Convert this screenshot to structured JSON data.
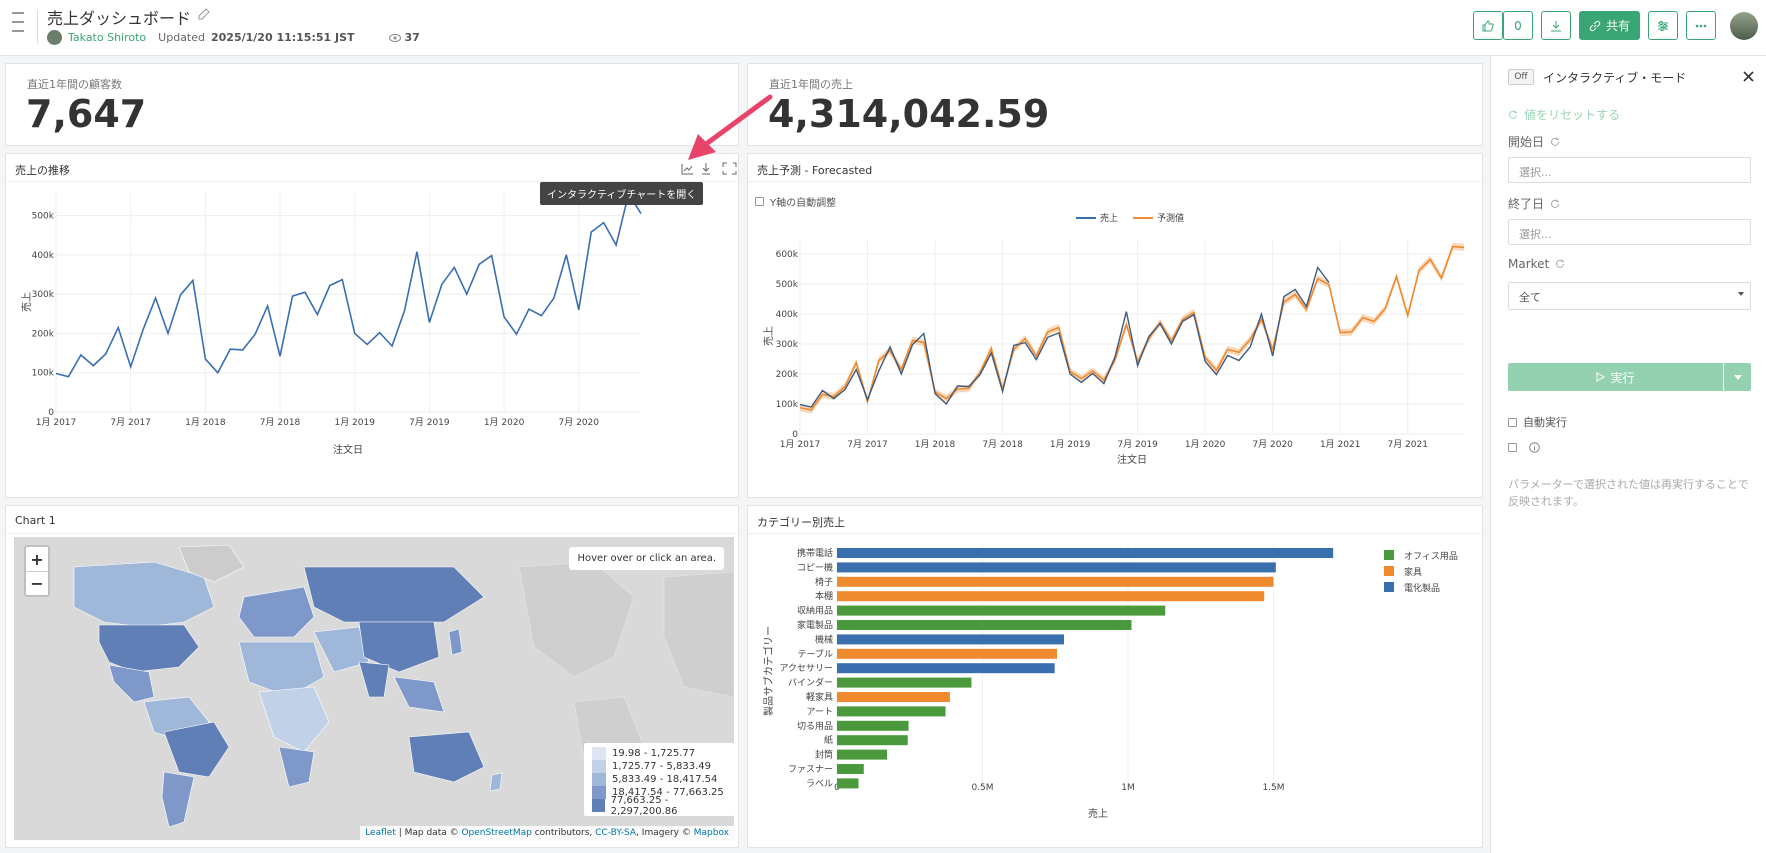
{
  "header": {
    "title": "売上ダッシュボード",
    "author": "Takato Shiroto",
    "updated_label": "Updated",
    "updated_value": "2025/1/20 11:15:51 JST",
    "views": "37",
    "likes": "0",
    "share_label": "共有"
  },
  "kpi": [
    {
      "label": "直近1年間の顧客数",
      "value": "7,647"
    },
    {
      "label": "直近1年間の売上",
      "value": "4,314,042.59"
    }
  ],
  "panels": {
    "trend_title": "売上の推移",
    "trend_tooltip": "インタラクティブチャートを開く",
    "forecast_title": "売上予測 - Forecasted",
    "forecast_checkbox": "Y軸の自動調整",
    "map_title": "Chart 1",
    "category_title": "カテゴリー別売上"
  },
  "chart_data": [
    {
      "type": "line",
      "xlabel": "注文日",
      "ylabel": "売上",
      "ylim": [
        0,
        560000
      ],
      "yticks": [
        "0",
        "100k",
        "200k",
        "300k",
        "400k",
        "500k"
      ],
      "xticks": [
        "1月 2017",
        "7月 2017",
        "1月 2018",
        "7月 2018",
        "1月 2019",
        "7月 2019",
        "1月 2020",
        "7月 2020"
      ],
      "x": [
        "2017-01",
        "2017-02",
        "2017-03",
        "2017-04",
        "2017-05",
        "2017-06",
        "2017-07",
        "2017-08",
        "2017-09",
        "2017-10",
        "2017-11",
        "2017-12",
        "2018-01",
        "2018-02",
        "2018-03",
        "2018-04",
        "2018-05",
        "2018-06",
        "2018-07",
        "2018-08",
        "2018-09",
        "2018-10",
        "2018-11",
        "2018-12",
        "2019-01",
        "2019-02",
        "2019-03",
        "2019-04",
        "2019-05",
        "2019-06",
        "2019-07",
        "2019-08",
        "2019-09",
        "2019-10",
        "2019-11",
        "2019-12",
        "2020-01",
        "2020-02",
        "2020-03",
        "2020-04",
        "2020-05",
        "2020-06",
        "2020-07",
        "2020-08",
        "2020-09",
        "2020-10",
        "2020-11",
        "2020-12"
      ],
      "values": [
        98000,
        90000,
        145000,
        118000,
        148000,
        215000,
        115000,
        210000,
        290000,
        200000,
        298000,
        335000,
        135000,
        100000,
        160000,
        158000,
        198000,
        270000,
        142000,
        295000,
        305000,
        248000,
        322000,
        337000,
        200000,
        172000,
        202000,
        168000,
        258000,
        408000,
        228000,
        325000,
        368000,
        300000,
        376000,
        398000,
        242000,
        198000,
        262000,
        245000,
        290000,
        400000,
        260000,
        458000,
        482000,
        425000,
        555000,
        505000
      ]
    },
    {
      "type": "line",
      "xlabel": "注文日",
      "ylabel": "売上",
      "ylim": [
        0,
        650000
      ],
      "yticks": [
        "0",
        "100k",
        "200k",
        "300k",
        "400k",
        "500k",
        "600k"
      ],
      "xticks": [
        "1月 2017",
        "7月 2017",
        "1月 2018",
        "7月 2018",
        "1月 2019",
        "7月 2019",
        "1月 2020",
        "7月 2020",
        "1月 2021",
        "7月 2021"
      ],
      "legend": [
        "売上",
        "予測値"
      ],
      "actual": [
        98000,
        90000,
        145000,
        118000,
        148000,
        215000,
        115000,
        210000,
        290000,
        200000,
        298000,
        335000,
        135000,
        100000,
        160000,
        158000,
        198000,
        270000,
        142000,
        295000,
        305000,
        248000,
        322000,
        337000,
        200000,
        172000,
        202000,
        168000,
        258000,
        408000,
        228000,
        325000,
        368000,
        300000,
        376000,
        398000,
        242000,
        198000,
        262000,
        245000,
        290000,
        400000,
        260000,
        458000,
        482000,
        425000,
        555000,
        505000
      ],
      "forecast": [
        88000,
        80000,
        132000,
        125000,
        158000,
        238000,
        108000,
        245000,
        278000,
        215000,
        312000,
        305000,
        140000,
        118000,
        150000,
        152000,
        205000,
        285000,
        150000,
        282000,
        318000,
        260000,
        340000,
        355000,
        208000,
        185000,
        210000,
        180000,
        248000,
        365000,
        240000,
        318000,
        372000,
        310000,
        382000,
        405000,
        255000,
        212000,
        282000,
        272000,
        315000,
        382000,
        282000,
        440000,
        465000,
        415000,
        518000,
        498000,
        338000,
        340000,
        388000,
        375000,
        418000,
        525000,
        395000,
        545000,
        582000,
        520000,
        625000,
        622000
      ]
    },
    {
      "type": "bar",
      "orientation": "horizontal",
      "ylabel": "製品サブカテゴリー",
      "xlabel": "売上",
      "xticks": [
        "0",
        "0.5M",
        "1M",
        "1.5M"
      ],
      "xlim": [
        0,
        1900000
      ],
      "legend": [
        {
          "name": "オフィス用品",
          "color": "#4a9a3d"
        },
        {
          "name": "家具",
          "color": "#f08a2e"
        },
        {
          "name": "電化製品",
          "color": "#3a6faf"
        }
      ],
      "categories": [
        "携帯電話",
        "コピー機",
        "椅子",
        "本棚",
        "収納用品",
        "家電製品",
        "機械",
        "テーブル",
        "アクセサリー",
        "バインダー",
        "軽家具",
        "アート",
        "切る用品",
        "紙",
        "封筒",
        "ファスナー",
        "ラベル"
      ],
      "values": [
        1705000,
        1508000,
        1500000,
        1468000,
        1128000,
        1012000,
        780000,
        756000,
        748000,
        462000,
        388000,
        373000,
        246000,
        243000,
        172000,
        92000,
        74000
      ],
      "groups": [
        "電化製品",
        "電化製品",
        "家具",
        "家具",
        "オフィス用品",
        "オフィス用品",
        "電化製品",
        "家具",
        "電化製品",
        "オフィス用品",
        "家具",
        "オフィス用品",
        "オフィス用品",
        "オフィス用品",
        "オフィス用品",
        "オフィス用品",
        "オフィス用品"
      ]
    }
  ],
  "map": {
    "hover_text": "Hover over or click an area.",
    "zoom_in": "+",
    "zoom_out": "−",
    "legend": [
      {
        "label": "19.98 - 1,725.77",
        "color": "#dde6f2"
      },
      {
        "label": "1,725.77 - 5,833.49",
        "color": "#c0d1e8"
      },
      {
        "label": "5,833.49 - 18,417.54",
        "color": "#9fb7d9"
      },
      {
        "label": "18,417.54 - 77,663.25",
        "color": "#7e99c9"
      },
      {
        "label": "77,663.25 - 2,297,200.86",
        "color": "#617fb7"
      }
    ],
    "attribution": {
      "leaflet": "Leaflet",
      "map_data": " | Map data © ",
      "osm": "OpenStreetMap",
      "contributors": " contributors, ",
      "license": "CC-BY-SA",
      "imagery": ", Imagery © ",
      "mapbox": "Mapbox"
    }
  },
  "sidebar": {
    "toggle": "Off",
    "title": "インタラクティブ・モード",
    "reset": "値をリセットする",
    "start_label": "開始日",
    "start_placeholder": "選択...",
    "end_label": "終了日",
    "end_placeholder": "選択...",
    "market_label": "Market",
    "market_value": "全て",
    "run_label": "実行",
    "auto_run": "自動実行",
    "hint": "パラメーターで選択された値は再実行することで反映されます。"
  },
  "colors": {
    "accent": "#3aa675",
    "line_blue": "#3a6faf",
    "forecast_orange": "#f08a2e",
    "arrow": "#e8436b"
  }
}
